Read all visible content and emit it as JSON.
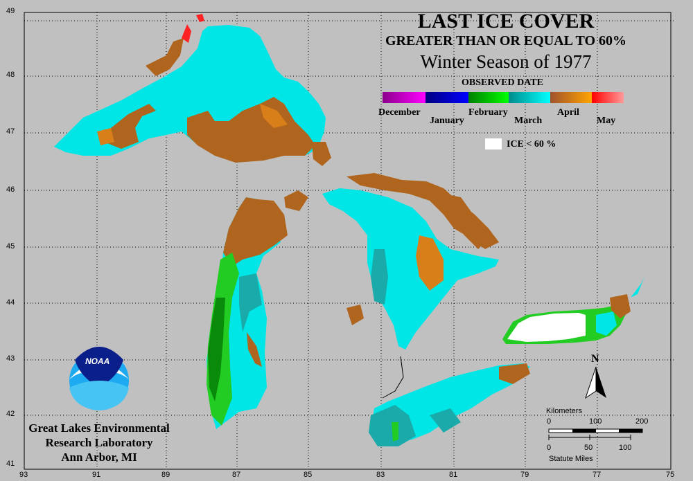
{
  "title": "LAST ICE COVER",
  "subtitle": "GREATER THAN OR EQUAL TO 60%",
  "season": "Winter Season of 1977",
  "legend": {
    "heading": "OBSERVED DATE",
    "months": [
      "December",
      "January",
      "February",
      "March",
      "April",
      "May"
    ],
    "colors": [
      [
        "#8b008b",
        "#ff00ff"
      ],
      [
        "#000080",
        "#0000ff"
      ],
      [
        "#008000",
        "#00ff00"
      ],
      [
        "#008b8b",
        "#00ffff"
      ],
      [
        "#a0522d",
        "#ffa500"
      ],
      [
        "#ff0000",
        "#ff9999"
      ]
    ],
    "ice_label": "ICE < 60 %"
  },
  "axes": {
    "lat": [
      "49",
      "48",
      "47",
      "46",
      "45",
      "44",
      "43",
      "42",
      "41"
    ],
    "lon": [
      "93",
      "91",
      "89",
      "87",
      "85",
      "83",
      "81",
      "79",
      "77",
      "75"
    ]
  },
  "north_label": "N",
  "scale": {
    "km_title": "Kilometers",
    "km_ticks": [
      "0",
      "100",
      "200"
    ],
    "mi_ticks": [
      "0",
      "50",
      "100"
    ],
    "mi_title": "Statute Miles"
  },
  "credit": [
    "Great Lakes Environmental",
    "Research Laboratory",
    "Ann Arbor, MI"
  ],
  "logo_text": "NOAA"
}
